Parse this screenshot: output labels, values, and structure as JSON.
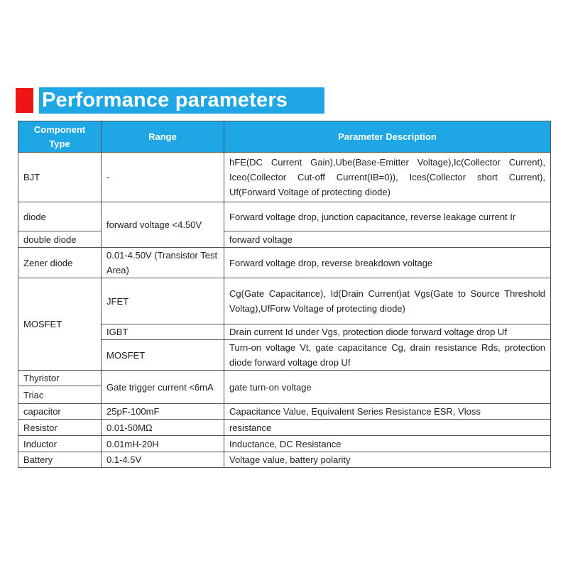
{
  "title": "Performance parameters",
  "colors": {
    "accent_red": "#f01414",
    "header_blue": "#1ea7e4"
  },
  "table": {
    "headers": [
      "Component Type",
      "Range",
      "Parameter Description"
    ],
    "rows": {
      "bjt": {
        "type": "BJT",
        "range": "-",
        "desc": "hFE(DC Current Gain),Ube(Base-Emitter Voltage),Ic(Collector Current), Iceo(Collector Cut-off Current(IB=0)), Ices(Collector short Current), Uf(Forward Voltage of protecting diode)"
      },
      "diode": {
        "type": "diode",
        "range": "forward voltage <4.50V",
        "desc": "Forward voltage drop, junction capacitance, reverse leakage current Ir"
      },
      "double_diode": {
        "type": "double diode",
        "desc": "forward voltage"
      },
      "zener": {
        "type": "Zener diode",
        "range": "0.01-4.50V (Transistor Test Area)",
        "desc": "Forward voltage drop, reverse breakdown voltage"
      },
      "mosfet_group": {
        "type": "MOSFET"
      },
      "jfet": {
        "range": "JFET",
        "desc": "Cg(Gate Capacitance), Id(Drain Current)at Vgs(Gate to Source Threshold Voltag),UfForw Voltage of protecting diode)"
      },
      "igbt": {
        "range": "IGBT",
        "desc": "Drain current Id under Vgs, protection diode forward voltage drop Uf"
      },
      "mosfet": {
        "range": "MOSFET",
        "desc": "Turn-on voltage Vt, gate capacitance Cg, drain resistance Rds, protection diode forward voltage drop Uf"
      },
      "thyristor": {
        "type": "Thyristor",
        "range": "Gate trigger current <6mA",
        "desc": "gate turn-on voltage"
      },
      "triac": {
        "type": "Triac"
      },
      "capacitor": {
        "type": "capacitor",
        "range": "25pF-100mF",
        "desc": "Capacitance Value, Equivalent Series Resistance ESR, Vloss"
      },
      "resistor": {
        "type": "Resistor",
        "range": "0.01-50MΩ",
        "desc": "resistance"
      },
      "inductor": {
        "type": "Inductor",
        "range": "0.01mH-20H",
        "desc": "Inductance, DC Resistance"
      },
      "battery": {
        "type": "Battery",
        "range": "0.1-4.5V",
        "desc": "Voltage value, battery polarity"
      }
    }
  }
}
